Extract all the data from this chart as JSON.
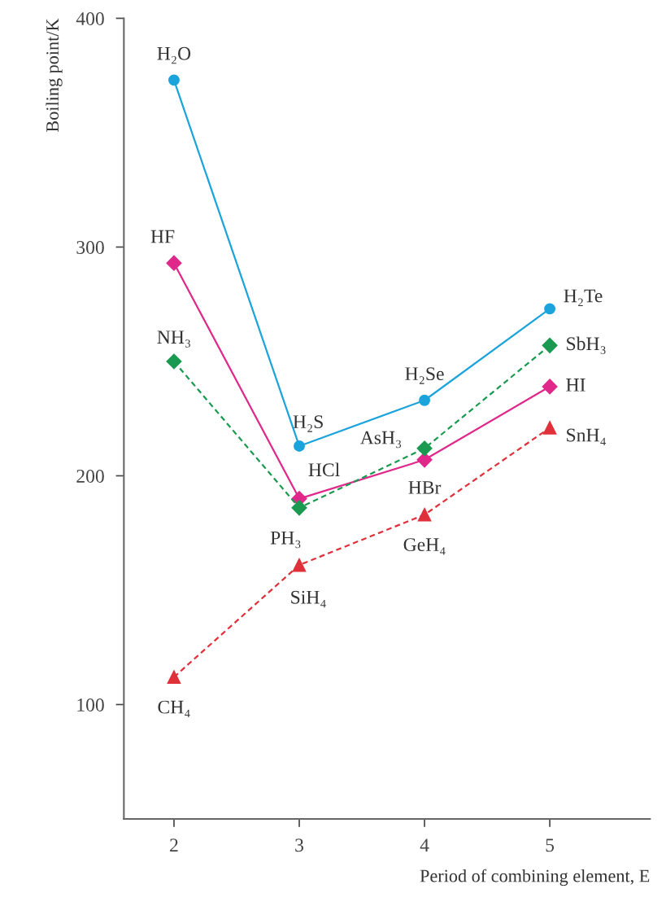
{
  "chart_data": {
    "type": "line",
    "xlabel": "Period of combining element, E",
    "ylabel": "Boiling point/K",
    "x": [
      2,
      3,
      4,
      5
    ],
    "xlim": [
      1.6,
      5.8
    ],
    "xticks": [
      2,
      3,
      4,
      5
    ],
    "ylim": [
      50,
      400
    ],
    "yticks": [
      100,
      200,
      300,
      400
    ],
    "grid": false,
    "series": [
      {
        "color": "#1ba3dc",
        "values": [
          373,
          213,
          233,
          273
        ],
        "marker": "circle",
        "line_style": "solid"
      },
      {
        "color": "#e0288a",
        "values": [
          293,
          190,
          207,
          239
        ],
        "marker": "diamond",
        "line_style": "solid"
      },
      {
        "color": "#1a9a50",
        "values": [
          250,
          186,
          212,
          257
        ],
        "marker": "diamond",
        "line_style": "dashed"
      },
      {
        "color": "#e0303a",
        "values": [
          112,
          161,
          183,
          221
        ],
        "marker": "triangle",
        "line_style": "dashed"
      }
    ],
    "annotations": [
      {
        "text": "H₂O",
        "x": 2,
        "y": 373
      },
      {
        "text": "H₂S",
        "x": 3,
        "y": 213
      },
      {
        "text": "H₂Se",
        "x": 4,
        "y": 233
      },
      {
        "text": "H₂Te",
        "x": 5,
        "y": 273
      },
      {
        "text": "HF",
        "x": 2,
        "y": 293
      },
      {
        "text": "HCl",
        "x": 3,
        "y": 190
      },
      {
        "text": "HBr",
        "x": 4,
        "y": 207
      },
      {
        "text": "HI",
        "x": 5,
        "y": 239
      },
      {
        "text": "NH₃",
        "x": 2,
        "y": 250
      },
      {
        "text": "PH₃",
        "x": 3,
        "y": 186
      },
      {
        "text": "AsH₃",
        "x": 4,
        "y": 212
      },
      {
        "text": "SbH₃",
        "x": 5,
        "y": 257
      },
      {
        "text": "CH₄",
        "x": 2,
        "y": 112
      },
      {
        "text": "SiH₄",
        "x": 3,
        "y": 161
      },
      {
        "text": "GeH₄",
        "x": 4,
        "y": 183
      },
      {
        "text": "SnH₄",
        "x": 5,
        "y": 221
      }
    ]
  }
}
